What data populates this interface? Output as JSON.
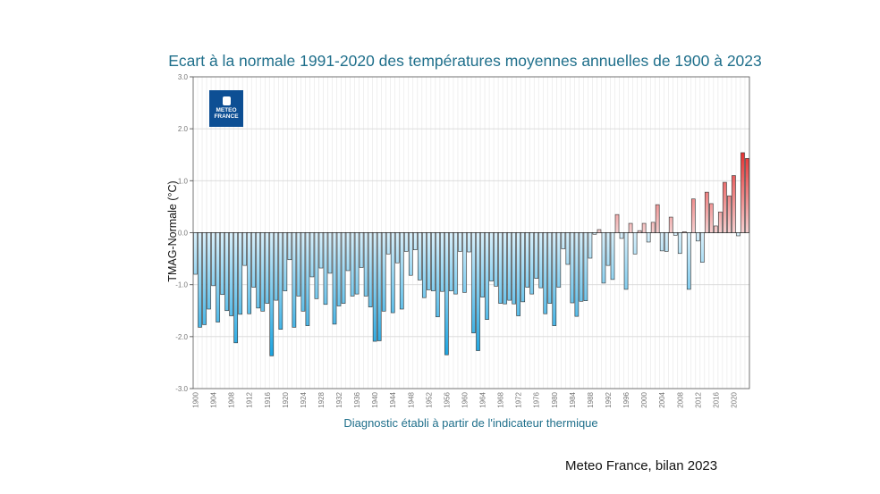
{
  "chart_data": {
    "type": "bar",
    "title": "Ecart à la normale 1991-2020 des températures moyennes annuelles de 1900 à 2023",
    "xlabel": "Diagnostic établi à partir de l'indicateur thermique",
    "ylabel": "TMAG-Normale (°C)",
    "ylim": [
      -3.0,
      3.0
    ],
    "yticks": [
      "-3.0",
      "-2.0",
      "-1.0",
      "0.0",
      "1.0",
      "2.0",
      "3.0"
    ],
    "x_start": 1900,
    "x_tick_step": 4,
    "grid": true,
    "colors": {
      "negative_light": "#d9f0fb",
      "negative_dark": "#19a3e0",
      "positive_light": "#f6d0d0",
      "positive_dark": "#e52b2b",
      "title": "#1f6f8b"
    },
    "values": [
      -0.8,
      -1.82,
      -1.77,
      -1.47,
      -1.02,
      -1.72,
      -1.19,
      -1.5,
      -1.6,
      -2.12,
      -1.57,
      -0.63,
      -1.56,
      -1.05,
      -1.45,
      -1.51,
      -1.36,
      -2.37,
      -1.3,
      -1.86,
      -1.12,
      -0.52,
      -1.82,
      -1.22,
      -1.51,
      -1.79,
      -0.85,
      -1.27,
      -0.68,
      -1.38,
      -0.78,
      -1.76,
      -1.41,
      -1.36,
      -0.73,
      -1.22,
      -1.18,
      -0.67,
      -1.22,
      -1.43,
      -2.09,
      -2.08,
      -1.51,
      -0.41,
      -1.54,
      -0.58,
      -1.47,
      -0.36,
      -0.82,
      -0.33,
      -0.91,
      -1.25,
      -1.1,
      -1.12,
      -1.62,
      -1.13,
      -2.35,
      -1.12,
      -1.18,
      -0.36,
      -1.15,
      -0.37,
      -1.93,
      -2.27,
      -1.24,
      -1.67,
      -0.93,
      -1.03,
      -1.36,
      -1.37,
      -1.3,
      -1.37,
      -1.6,
      -1.33,
      -1.05,
      -1.18,
      -0.88,
      -1.06,
      -1.56,
      -1.36,
      -1.79,
      -1.05,
      -0.31,
      -0.61,
      -1.35,
      -1.61,
      -1.32,
      -1.31,
      -0.49,
      -0.03,
      0.06,
      -0.97,
      -0.63,
      -0.9,
      0.35,
      -0.11,
      -1.09,
      0.18,
      -0.41,
      0.04,
      0.18,
      -0.18,
      0.2,
      0.54,
      -0.35,
      -0.36,
      0.3,
      -0.05,
      -0.4,
      0.02,
      -1.09,
      0.65,
      -0.16,
      -0.57,
      0.78,
      0.56,
      0.13,
      0.4,
      0.97,
      0.71,
      1.1,
      -0.06,
      1.54,
      1.43
    ]
  },
  "logo": {
    "text": "METEO FRANCE"
  },
  "source": "Meteo France, bilan 2023"
}
